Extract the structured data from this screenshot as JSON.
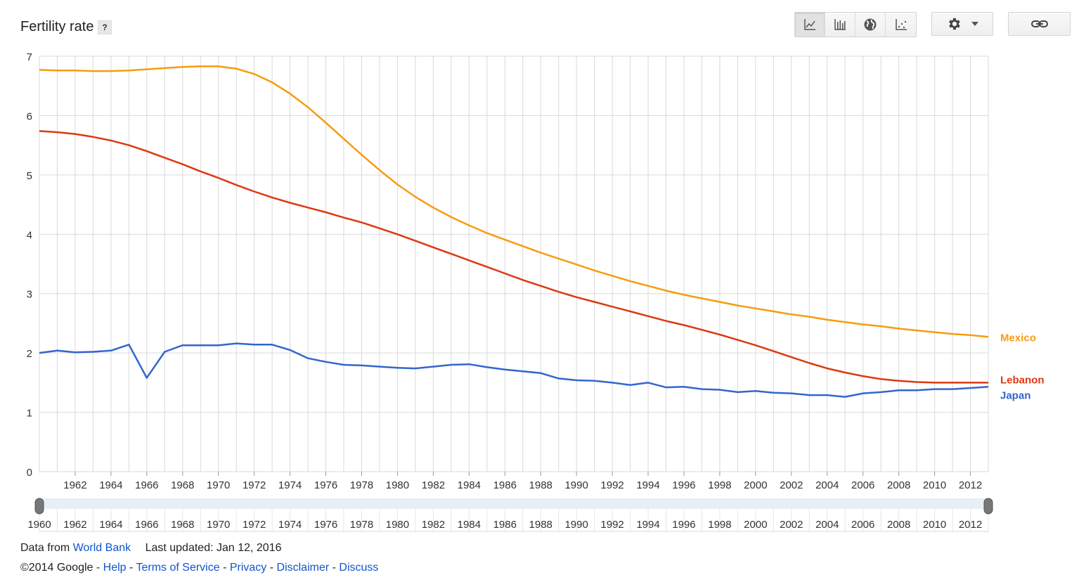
{
  "header": {
    "title": "Fertility rate",
    "help_label": "?"
  },
  "toolbar": {
    "buttons": [
      {
        "name": "line-chart-icon",
        "label": "Line chart"
      },
      {
        "name": "bar-chart-icon",
        "label": "Bar chart"
      },
      {
        "name": "map-icon",
        "label": "Map"
      },
      {
        "name": "scatter-chart-icon",
        "label": "Scatter chart"
      }
    ]
  },
  "colors": {
    "mexico": "#f79c0f",
    "lebanon": "#dc3912",
    "japan": "#3366cc",
    "grid": "#d9d9d9"
  },
  "footer": {
    "data_from_label": "Data from",
    "data_source_link": "World Bank",
    "last_updated": "Last updated: Jan 12, 2016",
    "copyright": "©2014 Google",
    "links": [
      "Help",
      "Terms of Service",
      "Privacy",
      "Disclaimer",
      "Discuss"
    ],
    "separator": " - "
  },
  "chart_data": {
    "type": "line",
    "title": "Fertility rate",
    "ylim": [
      0,
      7
    ],
    "yticks": [
      0,
      1,
      2,
      3,
      4,
      5,
      6,
      7
    ],
    "xlim": [
      1960,
      2013
    ],
    "xtick_labels": [
      "1962",
      "1964",
      "1966",
      "1968",
      "1970",
      "1972",
      "1974",
      "1976",
      "1978",
      "1980",
      "1982",
      "1984",
      "1986",
      "1988",
      "1990",
      "1992",
      "1994",
      "1996",
      "1998",
      "2000",
      "2002",
      "2004",
      "2006",
      "2008",
      "2010",
      "2012"
    ],
    "range_slider_labels": [
      "1960",
      "1962",
      "1964",
      "1966",
      "1968",
      "1970",
      "1972",
      "1974",
      "1976",
      "1978",
      "1980",
      "1982",
      "1984",
      "1986",
      "1988",
      "1990",
      "1992",
      "1994",
      "1996",
      "1998",
      "2000",
      "2002",
      "2004",
      "2006",
      "2008",
      "2010",
      "2012"
    ],
    "x": [
      1960,
      1961,
      1962,
      1963,
      1964,
      1965,
      1966,
      1967,
      1968,
      1969,
      1970,
      1971,
      1972,
      1973,
      1974,
      1975,
      1976,
      1977,
      1978,
      1979,
      1980,
      1981,
      1982,
      1983,
      1984,
      1985,
      1986,
      1987,
      1988,
      1989,
      1990,
      1991,
      1992,
      1993,
      1994,
      1995,
      1996,
      1997,
      1998,
      1999,
      2000,
      2001,
      2002,
      2003,
      2004,
      2005,
      2006,
      2007,
      2008,
      2009,
      2010,
      2011,
      2012,
      2013
    ],
    "series": [
      {
        "name": "Mexico",
        "color": "#f79c0f",
        "values": [
          6.77,
          6.76,
          6.76,
          6.75,
          6.75,
          6.76,
          6.78,
          6.8,
          6.82,
          6.83,
          6.83,
          6.79,
          6.7,
          6.56,
          6.37,
          6.14,
          5.88,
          5.61,
          5.34,
          5.08,
          4.84,
          4.63,
          4.45,
          4.29,
          4.15,
          4.02,
          3.91,
          3.8,
          3.69,
          3.59,
          3.49,
          3.39,
          3.3,
          3.21,
          3.13,
          3.05,
          2.98,
          2.92,
          2.86,
          2.8,
          2.75,
          2.7,
          2.65,
          2.61,
          2.56,
          2.52,
          2.48,
          2.45,
          2.41,
          2.38,
          2.35,
          2.32,
          2.3,
          2.27
        ]
      },
      {
        "name": "Lebanon",
        "color": "#dc3912",
        "values": [
          5.74,
          5.72,
          5.69,
          5.64,
          5.58,
          5.5,
          5.4,
          5.29,
          5.18,
          5.06,
          4.95,
          4.83,
          4.72,
          4.62,
          4.53,
          4.45,
          4.37,
          4.28,
          4.2,
          4.1,
          4.0,
          3.89,
          3.78,
          3.67,
          3.56,
          3.45,
          3.34,
          3.23,
          3.13,
          3.03,
          2.94,
          2.86,
          2.78,
          2.7,
          2.62,
          2.54,
          2.47,
          2.39,
          2.31,
          2.22,
          2.13,
          2.03,
          1.93,
          1.83,
          1.74,
          1.67,
          1.61,
          1.56,
          1.53,
          1.51,
          1.5,
          1.5,
          1.5,
          1.5
        ]
      },
      {
        "name": "Japan",
        "color": "#3366cc",
        "values": [
          2.0,
          2.04,
          2.01,
          2.02,
          2.04,
          2.14,
          1.58,
          2.02,
          2.13,
          2.13,
          2.13,
          2.16,
          2.14,
          2.14,
          2.05,
          1.91,
          1.85,
          1.8,
          1.79,
          1.77,
          1.75,
          1.74,
          1.77,
          1.8,
          1.81,
          1.76,
          1.72,
          1.69,
          1.66,
          1.57,
          1.54,
          1.53,
          1.5,
          1.46,
          1.5,
          1.42,
          1.43,
          1.39,
          1.38,
          1.34,
          1.36,
          1.33,
          1.32,
          1.29,
          1.29,
          1.26,
          1.32,
          1.34,
          1.37,
          1.37,
          1.39,
          1.39,
          1.41,
          1.43
        ]
      }
    ],
    "xlabel": "",
    "ylabel": ""
  }
}
